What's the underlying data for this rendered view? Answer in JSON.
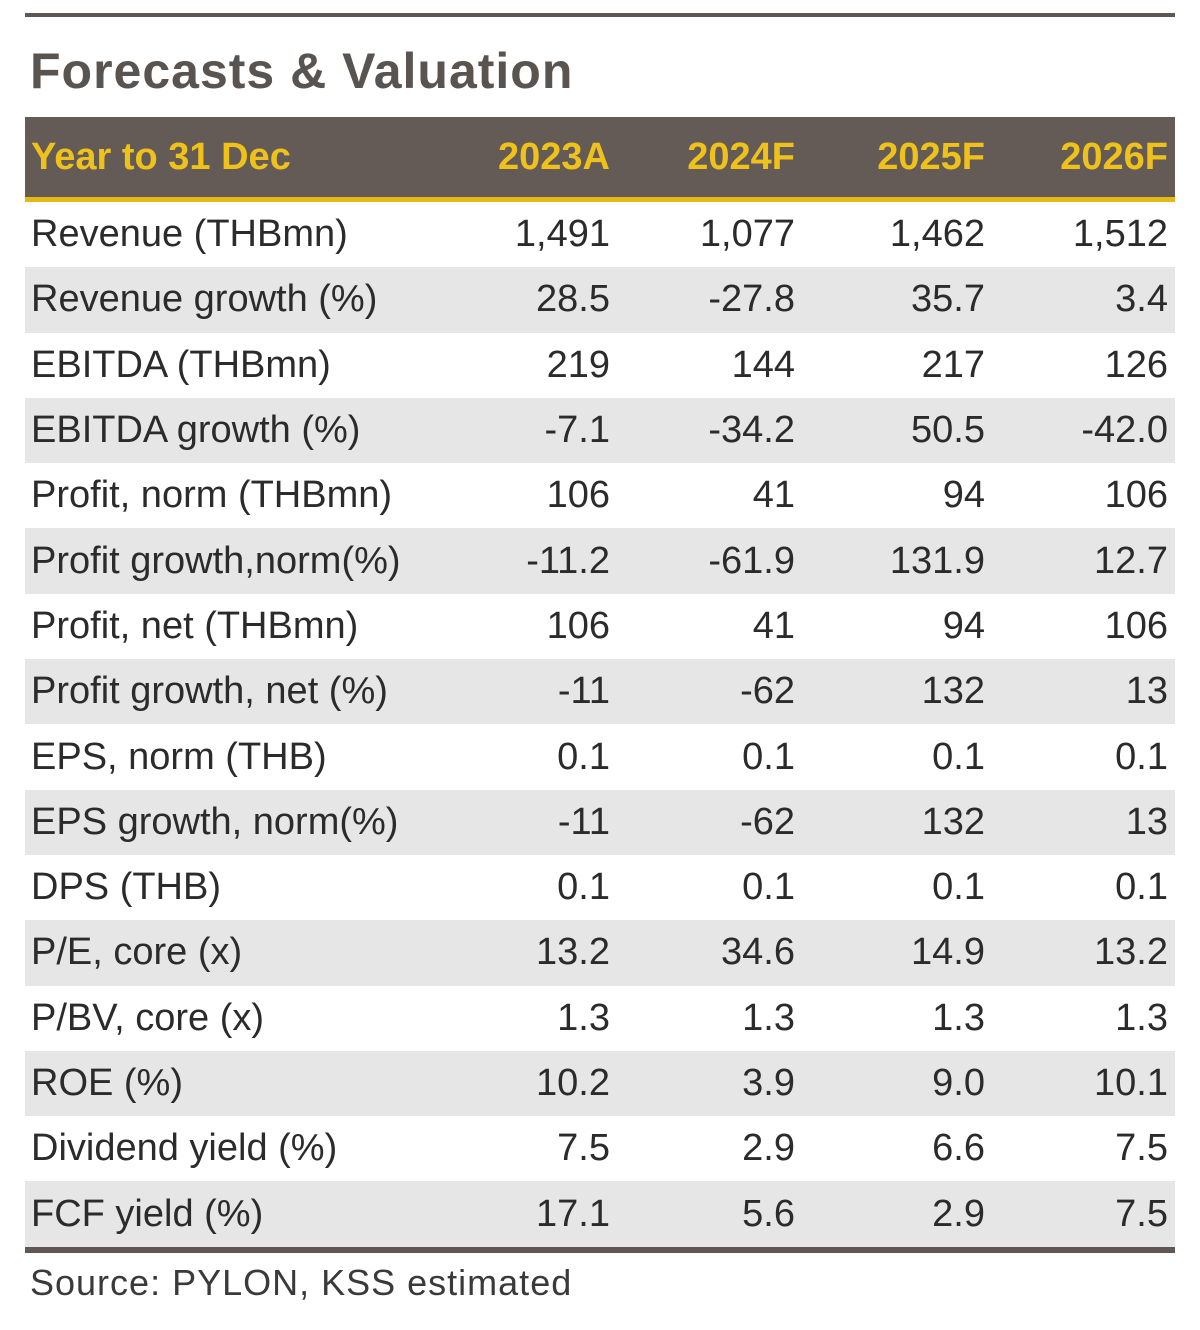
{
  "title": "Forecasts & Valuation",
  "columns": [
    "Year to 31 Dec",
    "2023A",
    "2024F",
    "2025F",
    "2026F"
  ],
  "rows": [
    {
      "label": "Revenue (THBmn)",
      "values": [
        "1,491",
        "1,077",
        "1,462",
        "1,512"
      ]
    },
    {
      "label": "Revenue growth (%)",
      "values": [
        "28.5",
        "-27.8",
        "35.7",
        "3.4"
      ]
    },
    {
      "label": "EBITDA (THBmn)",
      "values": [
        "219",
        "144",
        "217",
        "126"
      ]
    },
    {
      "label": "EBITDA growth (%)",
      "values": [
        "-7.1",
        "-34.2",
        "50.5",
        "-42.0"
      ]
    },
    {
      "label": "Profit, norm (THBmn)",
      "values": [
        "106",
        "41",
        "94",
        "106"
      ]
    },
    {
      "label": "Profit growth,norm(%)",
      "values": [
        "-11.2",
        "-61.9",
        "131.9",
        "12.7"
      ]
    },
    {
      "label": "Profit, net (THBmn)",
      "values": [
        "106",
        "41",
        "94",
        "106"
      ]
    },
    {
      "label": "Profit growth, net (%)",
      "values": [
        "-11",
        "-62",
        "132",
        "13"
      ]
    },
    {
      "label": "EPS, norm (THB)",
      "values": [
        "0.1",
        "0.1",
        "0.1",
        "0.1"
      ]
    },
    {
      "label": "EPS growth, norm(%)",
      "values": [
        "-11",
        "-62",
        "132",
        "13"
      ]
    },
    {
      "label": "DPS (THB)",
      "values": [
        "0.1",
        "0.1",
        "0.1",
        "0.1"
      ]
    },
    {
      "label": "P/E, core (x)",
      "values": [
        "13.2",
        "34.6",
        "14.9",
        "13.2"
      ]
    },
    {
      "label": "P/BV, core (x)",
      "values": [
        "1.3",
        "1.3",
        "1.3",
        "1.3"
      ]
    },
    {
      "label": "ROE (%)",
      "values": [
        "10.2",
        "3.9",
        "9.0",
        "10.1"
      ]
    },
    {
      "label": "Dividend yield (%)",
      "values": [
        "7.5",
        "2.9",
        "6.6",
        "7.5"
      ]
    },
    {
      "label": "FCF yield (%)",
      "values": [
        "17.1",
        "5.6",
        "2.9",
        "7.5"
      ]
    }
  ],
  "source": "Source: PYLON, KSS estimated",
  "colors": {
    "header_bg": "#645b56",
    "header_text": "#eec21a",
    "shade": "#e6e6e6",
    "rule": "#5f5753"
  }
}
